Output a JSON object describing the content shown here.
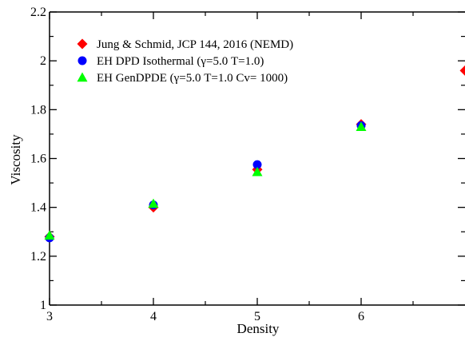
{
  "chart_data": {
    "type": "scatter",
    "xlabel": "Density",
    "ylabel": "Viscosity",
    "xlim": [
      3,
      7
    ],
    "ylim": [
      1,
      2.2
    ],
    "x_ticks": [
      3,
      4,
      5,
      6
    ],
    "y_ticks": [
      "1",
      "1.2",
      "1.4",
      "1.6",
      "1.8",
      "2",
      "2.2"
    ],
    "grid": false,
    "legend_position": "top-left",
    "series": [
      {
        "name": "Jung & Schmid, JCP 144, 2016 (NEMD)",
        "marker": "diamond",
        "color": "#ff0000",
        "points": [
          {
            "x": 3,
            "y": 1.28
          },
          {
            "x": 4,
            "y": 1.4
          },
          {
            "x": 5,
            "y": 1.555
          },
          {
            "x": 6,
            "y": 1.74
          },
          {
            "x": 7,
            "y": 1.96
          }
        ]
      },
      {
        "name": "EH DPD Isothermal (γ=5.0 T=1.0)",
        "marker": "circle",
        "color": "#0000ff",
        "points": [
          {
            "x": 3,
            "y": 1.275
          },
          {
            "x": 4,
            "y": 1.41
          },
          {
            "x": 5,
            "y": 1.575
          },
          {
            "x": 6,
            "y": 1.735
          }
        ]
      },
      {
        "name": "EH GenDPDE (γ=5.0 T=1.0 Cv= 1000)",
        "marker": "triangle",
        "color": "#00ff00",
        "points": [
          {
            "x": 3,
            "y": 1.285
          },
          {
            "x": 4,
            "y": 1.415
          },
          {
            "x": 5,
            "y": 1.545
          },
          {
            "x": 6,
            "y": 1.73
          }
        ]
      }
    ]
  }
}
